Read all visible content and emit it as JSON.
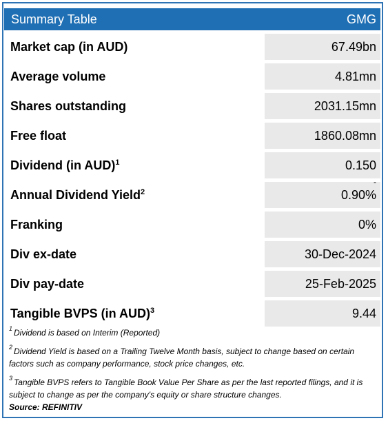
{
  "header": {
    "title": "Summary Table",
    "ticker": "GMG"
  },
  "rows": [
    {
      "label": "Market cap (in AUD)",
      "sup": "",
      "value": "67.49bn"
    },
    {
      "label": "Average volume",
      "sup": "",
      "value": "4.81mn"
    },
    {
      "label": "Shares outstanding",
      "sup": "",
      "value": "2031.15mn"
    },
    {
      "label": "Free float",
      "sup": "",
      "value": "1860.08mn"
    },
    {
      "label": "Dividend (in AUD)",
      "sup": "1",
      "value": "0.150"
    },
    {
      "label": "Annual Dividend Yield",
      "sup": "2",
      "value": "0.90%",
      "mark": "-"
    },
    {
      "label": "Franking",
      "sup": "",
      "value": "0%"
    },
    {
      "label": "Div ex-date",
      "sup": "",
      "value": "30-Dec-2024"
    },
    {
      "label": "Div pay-date",
      "sup": "",
      "value": "25-Feb-2025"
    },
    {
      "label": "Tangible BVPS (in AUD)",
      "sup": "3",
      "value": "9.44"
    }
  ],
  "notes": [
    {
      "num": "1",
      "text": "Dividend is based on Interim (Reported)"
    },
    {
      "num": "2",
      "text": "Dividend Yield is based on a Trailing Twelve Month basis, subject to change based on certain factors such as company performance, stock price changes, etc."
    },
    {
      "num": "3",
      "text": "Tangible BVPS refers to Tangible Book Value Per Share as per the last reported filings, and it is subject to change as per the company's equity or share structure changes."
    }
  ],
  "source": "Source: REFINITIV",
  "colors": {
    "header_bg": "#1f6fb4",
    "value_bg": "#e9e9e9",
    "border": "#2e74b5"
  }
}
